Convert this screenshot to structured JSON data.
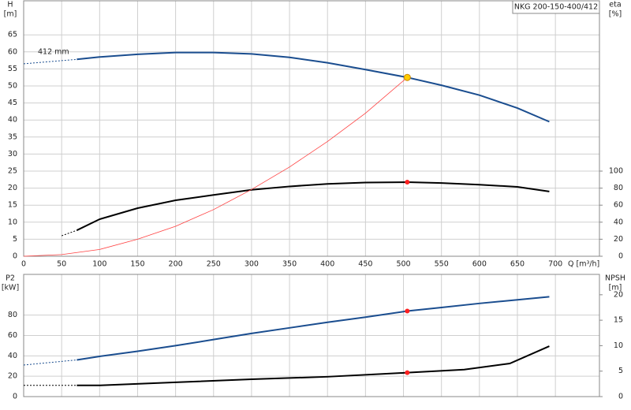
{
  "chart_data": [
    {
      "type": "line",
      "title": "NKG 200-150-400/412",
      "annotation": "412 mm",
      "ylabel": "H",
      "yunit": "[m]",
      "y2label": "eta",
      "y2unit": "[%]",
      "xlabel": "Q [m³/h]",
      "xlim": [
        0,
        758
      ],
      "xticks": [
        0,
        50,
        100,
        150,
        200,
        250,
        300,
        350,
        400,
        450,
        500,
        550,
        600,
        650,
        700
      ],
      "ylim": [
        0,
        75
      ],
      "yticks": [
        0,
        5,
        10,
        15,
        20,
        25,
        30,
        35,
        40,
        45,
        50,
        55,
        60,
        65
      ],
      "y2lim": [
        0,
        300
      ],
      "y2ticks": [
        0,
        20,
        40,
        60,
        80,
        100
      ],
      "grid": true,
      "series": [
        {
          "color": "#1a4d8f",
          "dashed": true,
          "x": [
            0,
            70
          ],
          "values": [
            56.5,
            57.8
          ]
        },
        {
          "color": "#1a4d8f",
          "x": [
            70,
            100,
            150,
            200,
            250,
            300,
            350,
            400,
            450,
            505,
            550,
            600,
            650,
            692
          ],
          "values": [
            57.8,
            58.5,
            59.3,
            59.8,
            59.8,
            59.4,
            58.4,
            56.8,
            54.8,
            52.5,
            50.2,
            47.3,
            43.5,
            39.5
          ]
        },
        {
          "color": "#000000",
          "dashed": true,
          "axis": "y2",
          "x": [
            50,
            70
          ],
          "values": [
            24,
            30.5
          ]
        },
        {
          "color": "#000000",
          "axis": "y2",
          "x": [
            70,
            100,
            150,
            200,
            250,
            300,
            350,
            400,
            450,
            505,
            550,
            600,
            650,
            692
          ],
          "values": [
            30.5,
            43.5,
            56.5,
            65.7,
            72,
            78,
            82,
            85,
            86.6,
            87,
            86,
            84,
            81.5,
            76
          ]
        },
        {
          "color": "#ff4040",
          "thin": true,
          "x": [
            0,
            50,
            100,
            150,
            200,
            250,
            300,
            350,
            400,
            450,
            505
          ],
          "values": [
            0,
            0.5,
            2,
            5,
            8.8,
            13.7,
            19.6,
            26.2,
            33.7,
            42,
            52.5
          ]
        }
      ],
      "markers": [
        {
          "x": 505,
          "y": 52.5,
          "color": "#ffcc00"
        },
        {
          "x": 505,
          "y": 87,
          "axis": "y2",
          "color": "#ff2020"
        }
      ]
    },
    {
      "type": "line",
      "ylabel": "P2",
      "yunit": "[kW]",
      "y2label": "NPSH",
      "y2unit": "[m]",
      "xlim": [
        0,
        758
      ],
      "shared_x": true,
      "ylim": [
        0,
        120
      ],
      "yticks": [
        0,
        20,
        40,
        60,
        80
      ],
      "y2lim": [
        0,
        24
      ],
      "y2ticks": [
        0,
        5,
        10,
        15,
        20
      ],
      "grid": true,
      "series": [
        {
          "color": "#1a4d8f",
          "dashed": true,
          "x": [
            0,
            70
          ],
          "values": [
            31,
            36
          ]
        },
        {
          "color": "#1a4d8f",
          "x": [
            70,
            100,
            150,
            200,
            250,
            300,
            350,
            400,
            450,
            505,
            550,
            600,
            650,
            692
          ],
          "values": [
            36,
            39.5,
            44.5,
            50,
            56,
            62,
            67.5,
            73,
            78,
            84,
            87.5,
            91.5,
            95,
            98
          ]
        },
        {
          "color": "#000000",
          "dashed": true,
          "axis": "y2",
          "x": [
            0,
            70
          ],
          "values": [
            2.2,
            2.2
          ]
        },
        {
          "color": "#000000",
          "axis": "y2",
          "x": [
            70,
            100,
            200,
            300,
            400,
            505,
            580,
            640,
            692
          ],
          "values": [
            2.2,
            2.2,
            2.8,
            3.4,
            3.9,
            4.7,
            5.3,
            6.5,
            9.9
          ]
        }
      ],
      "markers": [
        {
          "x": 505,
          "y": 84,
          "color": "#ff2020"
        },
        {
          "x": 505,
          "y": 4.7,
          "axis": "y2",
          "color": "#ff2020"
        }
      ]
    }
  ]
}
